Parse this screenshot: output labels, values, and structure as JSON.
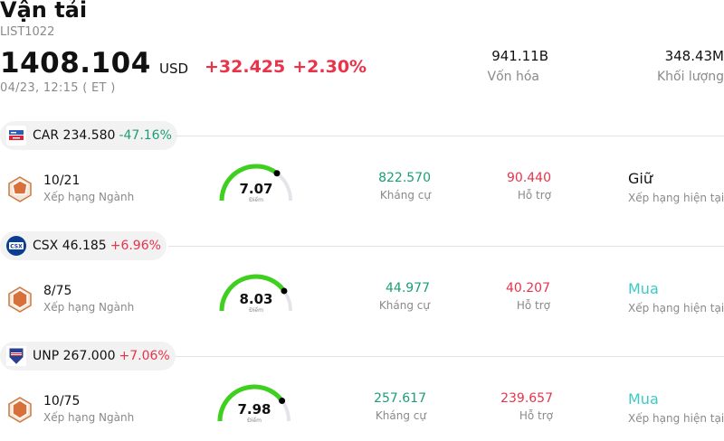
{
  "header": {
    "title": "Vận tải",
    "code": "LIST1022",
    "price": "1408.104",
    "currency": "USD",
    "change_abs": "+32.425",
    "change_pct": "+2.30%",
    "timestamp": "04/23, 12:15  ( ET )"
  },
  "stats": {
    "market_cap": {
      "value": "941.11B",
      "label": "Vốn hóa"
    },
    "volume": {
      "value": "348.43M",
      "label": "Khối lượng"
    }
  },
  "colors": {
    "up": "#e8334a",
    "down": "#1a9e77",
    "gauge_green": "#3fcf1e",
    "gauge_track": "#e4e4ea",
    "buy": "#3ec9c2",
    "hold": "#111111"
  },
  "stocks": [
    {
      "symbol": "CAR",
      "price": "234.580",
      "change_pct": "-47.16%",
      "direction": "down",
      "logo_icon": "avis-budget-logo",
      "rank": "10/21",
      "rank_label": "Xếp hạng Ngành",
      "score": 7.07,
      "score_text": "7.07",
      "score_label": "Điểm",
      "resistance": "822.570",
      "resistance_label": "Kháng cự",
      "support": "90.440",
      "support_label": "Hỗ trợ",
      "rating": "Giữ",
      "rating_type": "hold",
      "rating_label": "Xếp hạng hiện tại"
    },
    {
      "symbol": "CSX",
      "price": "46.185",
      "change_pct": "+6.96%",
      "direction": "up",
      "logo_icon": "csx-logo",
      "rank": "8/75",
      "rank_label": "Xếp hạng Ngành",
      "score": 8.03,
      "score_text": "8.03",
      "score_label": "Điểm",
      "resistance": "44.977",
      "resistance_label": "Kháng cự",
      "support": "40.207",
      "support_label": "Hỗ trợ",
      "rating": "Mua",
      "rating_type": "buy",
      "rating_label": "Xếp hạng hiện tại"
    },
    {
      "symbol": "UNP",
      "price": "267.000",
      "change_pct": "+7.06%",
      "direction": "up",
      "logo_icon": "union-pacific-logo",
      "rank": "10/75",
      "rank_label": "Xếp hạng Ngành",
      "score": 7.98,
      "score_text": "7.98",
      "score_label": "Điểm",
      "resistance": "257.617",
      "resistance_label": "Kháng cự",
      "support": "239.657",
      "support_label": "Hỗ trợ",
      "rating": "Mua",
      "rating_type": "buy",
      "rating_label": "Xếp hạng hiện tại"
    }
  ]
}
